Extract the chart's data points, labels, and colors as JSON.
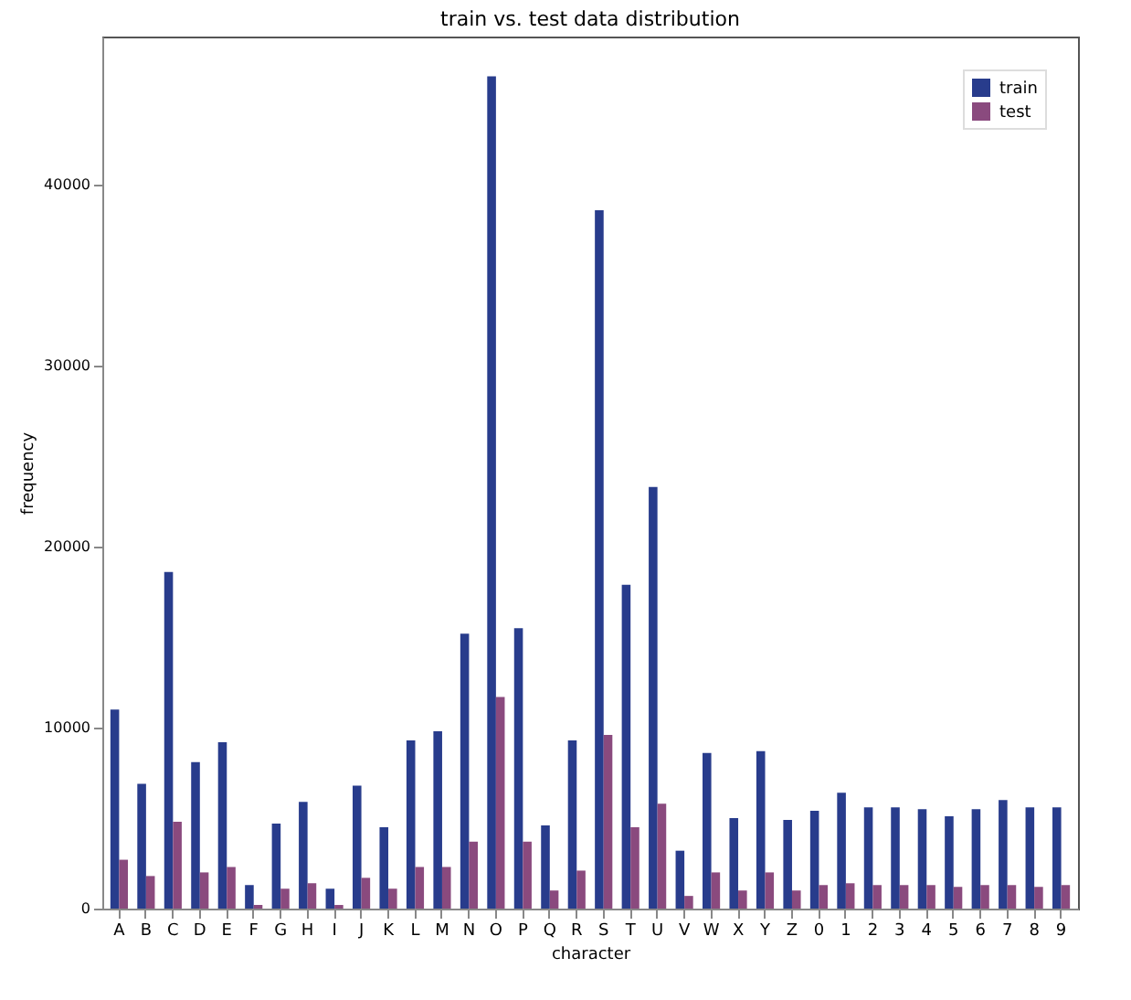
{
  "chart_data": {
    "type": "bar",
    "title": "train vs. test data distribution",
    "xlabel": "character",
    "ylabel": "frequency",
    "categories": [
      "A",
      "B",
      "C",
      "D",
      "E",
      "F",
      "G",
      "H",
      "I",
      "J",
      "K",
      "L",
      "M",
      "N",
      "O",
      "P",
      "Q",
      "R",
      "S",
      "T",
      "U",
      "V",
      "W",
      "X",
      "Y",
      "Z",
      "0",
      "1",
      "2",
      "3",
      "4",
      "5",
      "6",
      "7",
      "8",
      "9"
    ],
    "series": [
      {
        "name": "train",
        "color": "#283c8c",
        "values": [
          11000,
          6900,
          18600,
          8100,
          9200,
          1300,
          4700,
          5900,
          1100,
          6800,
          4500,
          9300,
          9800,
          15200,
          46000,
          15500,
          4600,
          9300,
          38600,
          17900,
          23300,
          3200,
          8600,
          5000,
          8700,
          4900,
          5400,
          6400,
          5600,
          5600,
          5500,
          5100,
          5500,
          6000,
          5600,
          5600
        ]
      },
      {
        "name": "test",
        "color": "#8a4a7e",
        "values": [
          2700,
          1800,
          4800,
          2000,
          2300,
          200,
          1100,
          1400,
          200,
          1700,
          1100,
          2300,
          2300,
          3700,
          11700,
          3700,
          1000,
          2100,
          9600,
          4500,
          5800,
          700,
          2000,
          1000,
          2000,
          1000,
          1300,
          1400,
          1300,
          1300,
          1300,
          1200,
          1300,
          1300,
          1200,
          1300
        ]
      }
    ],
    "ylim": [
      0,
      48200
    ],
    "yticks": [
      0,
      10000,
      20000,
      30000,
      40000
    ],
    "legend": "top right"
  }
}
